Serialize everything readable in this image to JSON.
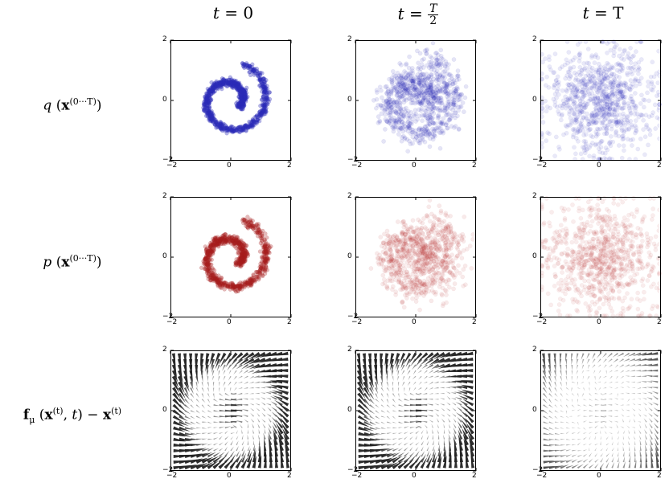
{
  "columns": [
    "t = 0",
    "t = T/2",
    "t = T"
  ],
  "col_title_parts": {
    "t0": {
      "lhs": "t",
      "eq": " = 0"
    },
    "tmid": {
      "lhs": "t",
      "num": "T",
      "den": "2"
    },
    "tT": {
      "lhs": "t",
      "eq": " = T"
    }
  },
  "rows": [
    {
      "label_main": "q",
      "label_sup": "(0···T)"
    },
    {
      "label_main": "p",
      "label_sup": "(0···T)"
    },
    {
      "label_main": "f",
      "label_sub": "μ",
      "label_sup": "(t)"
    }
  ],
  "chart_data": [
    {
      "type": "scatter",
      "row": "q",
      "time": "t = 0",
      "color": "#2a2ab8",
      "spread": 0.06,
      "alpha": 0.35,
      "xlim": [
        -2,
        2
      ],
      "ylim": [
        -2,
        2
      ],
      "xticks": [
        "−2",
        "0",
        "2"
      ],
      "yticks": [
        "2",
        "0",
        "−2"
      ]
    },
    {
      "type": "scatter",
      "row": "q",
      "time": "t = T/2",
      "color": "#2a2ab8",
      "spread": 0.28,
      "alpha": 0.12,
      "xlim": [
        -2,
        2
      ],
      "ylim": [
        -2,
        2
      ],
      "xticks": [
        "−2",
        "0",
        "2"
      ],
      "yticks": [
        "2",
        "0",
        "−2"
      ]
    },
    {
      "type": "scatter",
      "row": "q",
      "time": "t = T",
      "color": "#2a2ab8",
      "spread": 1.0,
      "alpha": 0.1,
      "xlim": [
        -2,
        2
      ],
      "ylim": [
        -2,
        2
      ],
      "xticks": [
        "−2",
        "0",
        "2"
      ],
      "yticks": [
        "2",
        "0",
        "−2"
      ]
    },
    {
      "type": "scatter",
      "row": "p",
      "time": "t = 0",
      "color": "#a61e1e",
      "spread": 0.07,
      "alpha": 0.3,
      "xlim": [
        -2,
        2
      ],
      "ylim": [
        -2,
        2
      ],
      "xticks": [
        "−2",
        "0",
        "2"
      ],
      "yticks": [
        "2",
        "0",
        "−2"
      ]
    },
    {
      "type": "scatter",
      "row": "p",
      "time": "t = T/2",
      "color": "#b83232",
      "spread": 0.3,
      "alpha": 0.1,
      "xlim": [
        -2,
        2
      ],
      "ylim": [
        -2,
        2
      ],
      "xticks": [
        "−2",
        "0",
        "2"
      ],
      "yticks": [
        "2",
        "0",
        "−2"
      ]
    },
    {
      "type": "scatter",
      "row": "p",
      "time": "t = T",
      "color": "#b83232",
      "spread": 1.0,
      "alpha": 0.09,
      "xlim": [
        -2,
        2
      ],
      "ylim": [
        -2,
        2
      ],
      "xticks": [
        "−2",
        "0",
        "2"
      ],
      "yticks": [
        "2",
        "0",
        "−2"
      ]
    },
    {
      "type": "quiver",
      "row": "f",
      "time": "t = 0",
      "color": "#222222",
      "strength": 1.0,
      "xlim": [
        -2,
        2
      ],
      "ylim": [
        -2,
        2
      ],
      "xticks": [
        "−2",
        "0",
        "2"
      ],
      "yticks": [
        "2",
        "0",
        "−2"
      ]
    },
    {
      "type": "quiver",
      "row": "f",
      "time": "t = T/2",
      "color": "#222222",
      "strength": 0.9,
      "xlim": [
        -2,
        2
      ],
      "ylim": [
        -2,
        2
      ],
      "xticks": [
        "−2",
        "0",
        "2"
      ],
      "yticks": [
        "2",
        "0",
        "−2"
      ]
    },
    {
      "type": "quiver",
      "row": "f",
      "time": "t = T",
      "color": "#444444",
      "strength": 0.3,
      "xlim": [
        -2,
        2
      ],
      "ylim": [
        -2,
        2
      ],
      "xticks": [
        "−2",
        "0",
        "2"
      ],
      "yticks": [
        "2",
        "0",
        "−2"
      ]
    }
  ]
}
